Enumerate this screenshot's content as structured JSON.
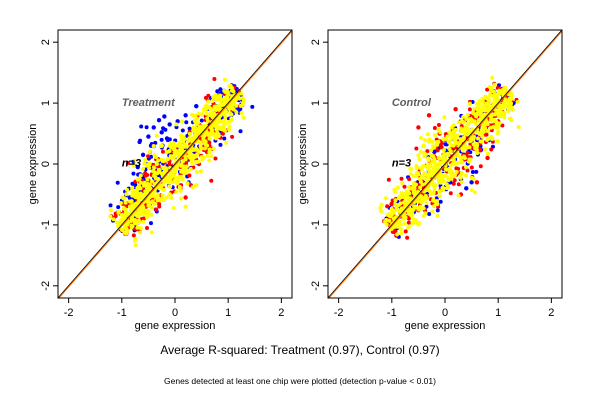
{
  "chart_data": [
    {
      "type": "scatter",
      "title": "Treatment",
      "n_label": "n=3",
      "xlabel": "gene expression",
      "ylabel": "gene expression",
      "xlim": [
        -2.2,
        2.2
      ],
      "ylim": [
        -2.2,
        2.2
      ],
      "xticks": [
        "-2",
        "-1",
        "0",
        "1",
        "2"
      ],
      "yticks": [
        "-2",
        "-1",
        "0",
        "1",
        "2"
      ],
      "grid": false,
      "reference_lines": [
        "identity y = x"
      ],
      "series": [
        {
          "color": "#0000ff",
          "sample": [
            [
              -0.5,
              0.45
            ],
            [
              -0.4,
              0.6
            ],
            [
              -0.3,
              0.72
            ],
            [
              -0.2,
              0.78
            ],
            [
              -0.1,
              0.65
            ],
            [
              -0.45,
              0.3
            ],
            [
              -0.6,
              0.15
            ],
            [
              -0.7,
              -0.05
            ],
            [
              -0.85,
              -0.55
            ],
            [
              -0.95,
              -0.9
            ],
            [
              0.2,
              0.8
            ],
            [
              0.4,
              0.95
            ],
            [
              0.7,
              1.05
            ],
            [
              1.0,
              1.1
            ],
            [
              1.15,
              1.18
            ],
            [
              -0.25,
              0.52
            ],
            [
              -0.15,
              0.42
            ],
            [
              0.05,
              0.7
            ]
          ]
        },
        {
          "color": "#ff0000",
          "sample": [
            [
              0.1,
              -0.4
            ],
            [
              0.3,
              -0.35
            ],
            [
              -0.5,
              -0.3
            ],
            [
              0.6,
              0.2
            ],
            [
              0.9,
              0.5
            ],
            [
              -0.8,
              -0.9
            ],
            [
              0.2,
              -0.55
            ],
            [
              0.45,
              0.0
            ],
            [
              0.7,
              0.25
            ],
            [
              -0.3,
              -0.6
            ]
          ]
        },
        {
          "color": "#ffff00",
          "sample": [
            [
              0,
              0
            ],
            [
              0.2,
              0.2
            ],
            [
              -0.2,
              -0.2
            ],
            [
              0.5,
              0.5
            ],
            [
              -0.5,
              -0.5
            ],
            [
              0.8,
              0.8
            ],
            [
              -0.8,
              -0.8
            ],
            [
              1.0,
              1.0
            ],
            [
              0.3,
              0.1
            ],
            [
              -0.3,
              -0.1
            ],
            [
              0.6,
              0.3
            ],
            [
              0.4,
              -0.35
            ],
            [
              0.2,
              -0.7
            ],
            [
              -0.1,
              -0.5
            ],
            [
              0.9,
              0.7
            ],
            [
              0.1,
              0.35
            ]
          ]
        }
      ]
    },
    {
      "type": "scatter",
      "title": "Control",
      "n_label": "n=3",
      "xlabel": "gene expression",
      "ylabel": "gene expression",
      "xlim": [
        -2.2,
        2.2
      ],
      "ylim": [
        -2.2,
        2.2
      ],
      "xticks": [
        "-2",
        "-1",
        "0",
        "1",
        "2"
      ],
      "yticks": [
        "-2",
        "-1",
        "0",
        "1",
        "2"
      ],
      "grid": false,
      "reference_lines": [
        "identity y = x"
      ],
      "series": [
        {
          "color": "#0000ff",
          "sample": [
            [
              0.3,
              -0.25
            ],
            [
              0.5,
              -0.3
            ],
            [
              -0.2,
              0.2
            ],
            [
              0.4,
              -0.4
            ],
            [
              -0.6,
              -0.7
            ],
            [
              -0.9,
              -1.05
            ],
            [
              0.1,
              -0.3
            ]
          ]
        },
        {
          "color": "#ff0000",
          "sample": [
            [
              -0.5,
              0.6
            ],
            [
              -0.3,
              0.8
            ],
            [
              0.2,
              0.9
            ],
            [
              0.6,
              -0.3
            ],
            [
              0.8,
              0.1
            ],
            [
              1.0,
              0.7
            ],
            [
              0.4,
              0.45
            ],
            [
              -0.7,
              -0.5
            ],
            [
              0.3,
              -0.5
            ],
            [
              -0.1,
              0.5
            ]
          ]
        },
        {
          "color": "#ffff00",
          "sample": [
            [
              0,
              0
            ],
            [
              0.2,
              0.2
            ],
            [
              -0.2,
              -0.2
            ],
            [
              0.5,
              0.5
            ],
            [
              -0.5,
              -0.5
            ],
            [
              0.8,
              0.8
            ],
            [
              -0.8,
              -0.8
            ],
            [
              1.0,
              1.0
            ],
            [
              0.3,
              0.1
            ],
            [
              -0.3,
              -0.1
            ],
            [
              0.6,
              0.3
            ],
            [
              -0.4,
              0.3
            ],
            [
              0.1,
              0.5
            ],
            [
              -0.1,
              -0.45
            ],
            [
              0.9,
              0.7
            ]
          ]
        }
      ]
    }
  ],
  "caption_main": "Average R-squared: Treatment (0.97), Control (0.97)",
  "caption_note": "Genes detected at least one chip were plotted (detection p-value < 0.01)"
}
